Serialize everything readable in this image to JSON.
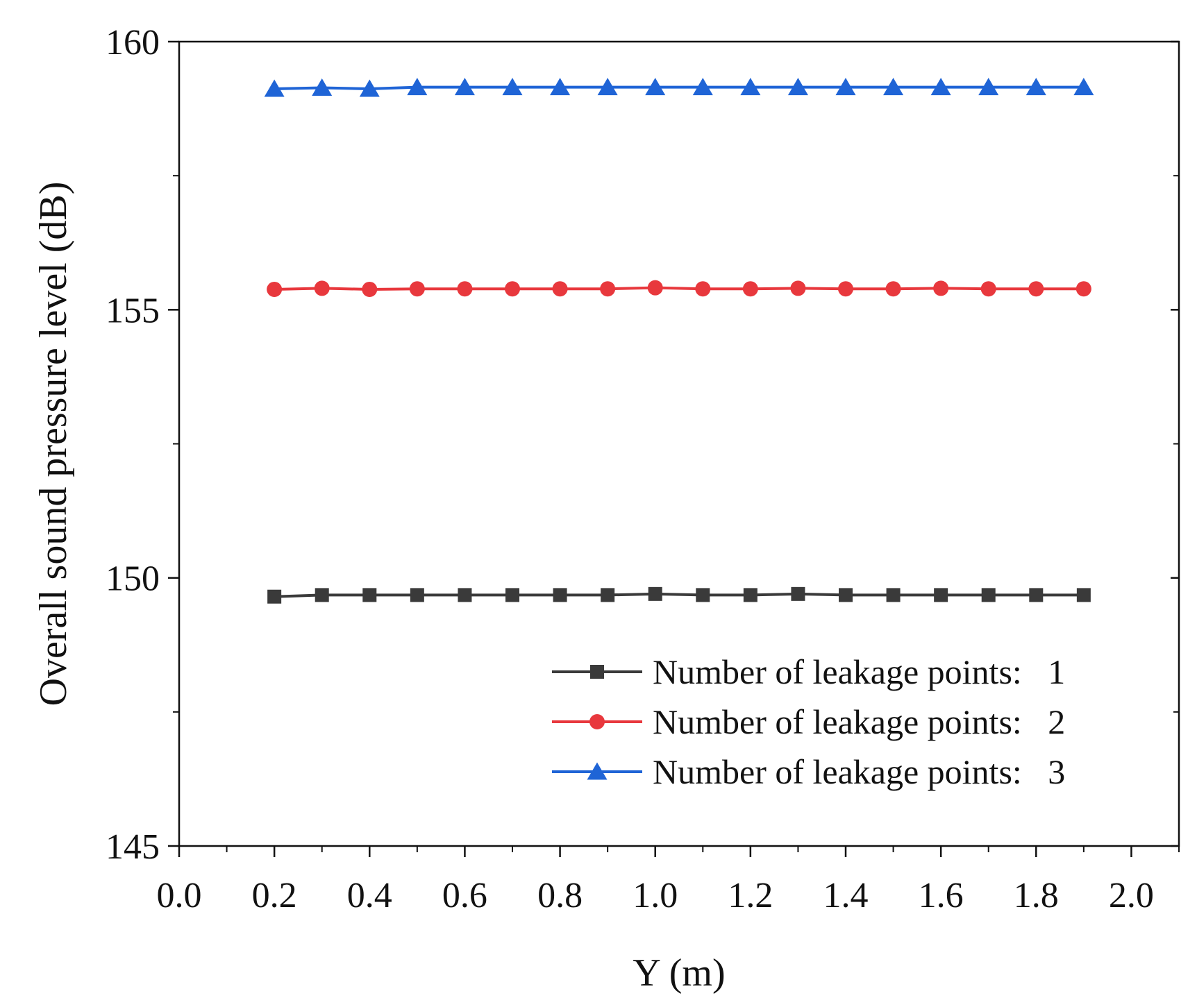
{
  "chart_data": {
    "type": "line",
    "title": "",
    "xlabel": "Y (m)",
    "ylabel": "Overall sound pressure level (dB)",
    "xlim": [
      0.0,
      2.1
    ],
    "ylim": [
      145,
      160
    ],
    "x_ticks": [
      "0.0",
      "0.2",
      "0.4",
      "0.6",
      "0.8",
      "1.0",
      "1.2",
      "1.4",
      "1.6",
      "1.8",
      "2.0"
    ],
    "x_tick_values": [
      0.0,
      0.2,
      0.4,
      0.6,
      0.8,
      1.0,
      1.2,
      1.4,
      1.6,
      1.8,
      2.0
    ],
    "x_minor_step": 0.1,
    "y_ticks": [
      "145",
      "150",
      "155",
      "160"
    ],
    "y_tick_values": [
      145,
      150,
      155,
      160
    ],
    "y_minor_step": 2.5,
    "grid": false,
    "legend_position": "bottom-right",
    "x": [
      0.2,
      0.3,
      0.4,
      0.5,
      0.6,
      0.7,
      0.8,
      0.9,
      1.0,
      1.1,
      1.2,
      1.3,
      1.4,
      1.5,
      1.6,
      1.7,
      1.8,
      1.9
    ],
    "series": [
      {
        "name": "Number of leakage points:   1",
        "color": "#3a3a3a",
        "marker": "square",
        "values": [
          149.65,
          149.68,
          149.68,
          149.68,
          149.68,
          149.68,
          149.68,
          149.68,
          149.7,
          149.68,
          149.68,
          149.7,
          149.68,
          149.68,
          149.68,
          149.68,
          149.68,
          149.68
        ]
      },
      {
        "name": "Number of leakage points:   2",
        "color": "#e8383d",
        "marker": "circle",
        "values": [
          155.38,
          155.4,
          155.38,
          155.39,
          155.39,
          155.39,
          155.39,
          155.39,
          155.41,
          155.39,
          155.39,
          155.4,
          155.39,
          155.39,
          155.4,
          155.39,
          155.39,
          155.39
        ]
      },
      {
        "name": "Number of leakage points:   3",
        "color": "#1f64d6",
        "marker": "triangle",
        "values": [
          159.12,
          159.14,
          159.12,
          159.15,
          159.15,
          159.15,
          159.15,
          159.15,
          159.15,
          159.15,
          159.15,
          159.15,
          159.15,
          159.15,
          159.15,
          159.15,
          159.15,
          159.15
        ]
      }
    ]
  }
}
